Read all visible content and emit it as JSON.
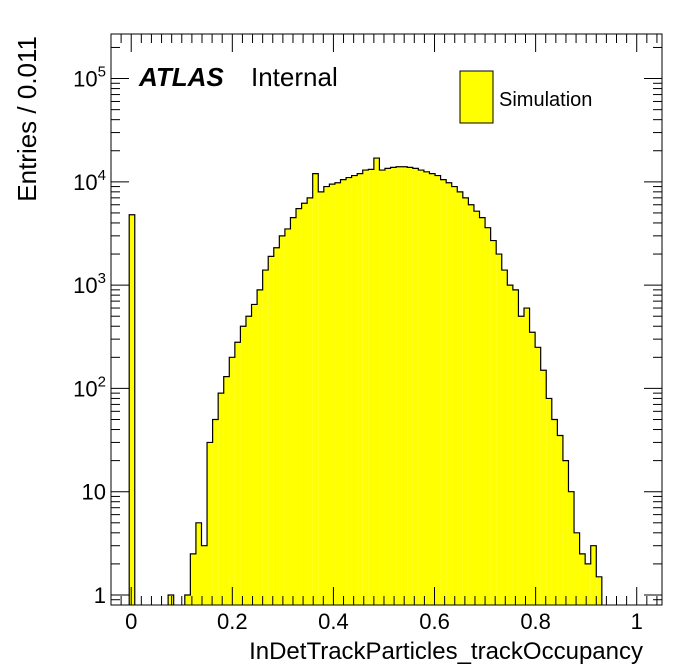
{
  "chart_data": {
    "type": "histogram",
    "title": "",
    "xlabel": "InDetTrackParticles_trackOccupancy",
    "ylabel": "Entries / 0.011",
    "xlim": [
      -0.04,
      1.05
    ],
    "ylim": [
      0.8,
      270000
    ],
    "yscale": "log",
    "grid": false,
    "legend_position": "top-right",
    "colors": {
      "fill": "#ffff00",
      "line": "#000000"
    },
    "labels": {
      "atlas": "ATLAS",
      "internal": "Internal"
    },
    "legend": [
      {
        "label": "Simulation",
        "color": "#ffff00"
      }
    ],
    "x_ticks": [
      "0",
      "0.2",
      "0.4",
      "0.6",
      "0.8",
      "1"
    ],
    "x_tick_values": [
      0,
      0.2,
      0.4,
      0.6,
      0.8,
      1
    ],
    "y_ticks": [
      {
        "value": 1,
        "base": "1",
        "exp": ""
      },
      {
        "value": 10,
        "base": "10",
        "exp": ""
      },
      {
        "value": 100,
        "base": "10",
        "exp": "2"
      },
      {
        "value": 1000,
        "base": "10",
        "exp": "3"
      },
      {
        "value": 10000,
        "base": "10",
        "exp": "4"
      },
      {
        "value": 100000,
        "base": "10",
        "exp": "5"
      }
    ],
    "bin_width": 0.011,
    "bins": [
      [
        -0.004,
        4800
      ],
      [
        0.073,
        1
      ],
      [
        0.106,
        1
      ],
      [
        0.117,
        2.5
      ],
      [
        0.128,
        5
      ],
      [
        0.139,
        3
      ],
      [
        0.15,
        30
      ],
      [
        0.161,
        50
      ],
      [
        0.172,
        90
      ],
      [
        0.183,
        130
      ],
      [
        0.194,
        200
      ],
      [
        0.205,
        280
      ],
      [
        0.216,
        400
      ],
      [
        0.227,
        500
      ],
      [
        0.238,
        650
      ],
      [
        0.249,
        900
      ],
      [
        0.26,
        1400
      ],
      [
        0.271,
        1900
      ],
      [
        0.282,
        2300
      ],
      [
        0.293,
        3000
      ],
      [
        0.304,
        3500
      ],
      [
        0.315,
        4500
      ],
      [
        0.326,
        5500
      ],
      [
        0.337,
        6200
      ],
      [
        0.348,
        7000
      ],
      [
        0.359,
        12000
      ],
      [
        0.37,
        8000
      ],
      [
        0.381,
        9000
      ],
      [
        0.392,
        9500
      ],
      [
        0.403,
        9800
      ],
      [
        0.414,
        10500
      ],
      [
        0.425,
        11000
      ],
      [
        0.436,
        11500
      ],
      [
        0.447,
        12000
      ],
      [
        0.458,
        13000
      ],
      [
        0.469,
        13200
      ],
      [
        0.48,
        17000
      ],
      [
        0.491,
        13000
      ],
      [
        0.502,
        13500
      ],
      [
        0.513,
        13800
      ],
      [
        0.524,
        14000
      ],
      [
        0.535,
        14000
      ],
      [
        0.546,
        13800
      ],
      [
        0.557,
        13500
      ],
      [
        0.568,
        13000
      ],
      [
        0.579,
        12500
      ],
      [
        0.59,
        12000
      ],
      [
        0.601,
        11500
      ],
      [
        0.612,
        10500
      ],
      [
        0.623,
        9800
      ],
      [
        0.634,
        9000
      ],
      [
        0.645,
        8000
      ],
      [
        0.656,
        7000
      ],
      [
        0.667,
        6000
      ],
      [
        0.678,
        5200
      ],
      [
        0.689,
        4500
      ],
      [
        0.7,
        3600
      ],
      [
        0.711,
        2700
      ],
      [
        0.722,
        2000
      ],
      [
        0.733,
        1400
      ],
      [
        0.744,
        1000
      ],
      [
        0.755,
        900
      ],
      [
        0.766,
        500
      ],
      [
        0.777,
        600
      ],
      [
        0.788,
        350
      ],
      [
        0.799,
        250
      ],
      [
        0.81,
        150
      ],
      [
        0.821,
        80
      ],
      [
        0.832,
        50
      ],
      [
        0.843,
        35
      ],
      [
        0.854,
        20
      ],
      [
        0.865,
        10
      ],
      [
        0.876,
        4
      ],
      [
        0.887,
        2.5
      ],
      [
        0.898,
        2
      ],
      [
        0.909,
        3
      ],
      [
        0.92,
        1.5
      ]
    ]
  }
}
